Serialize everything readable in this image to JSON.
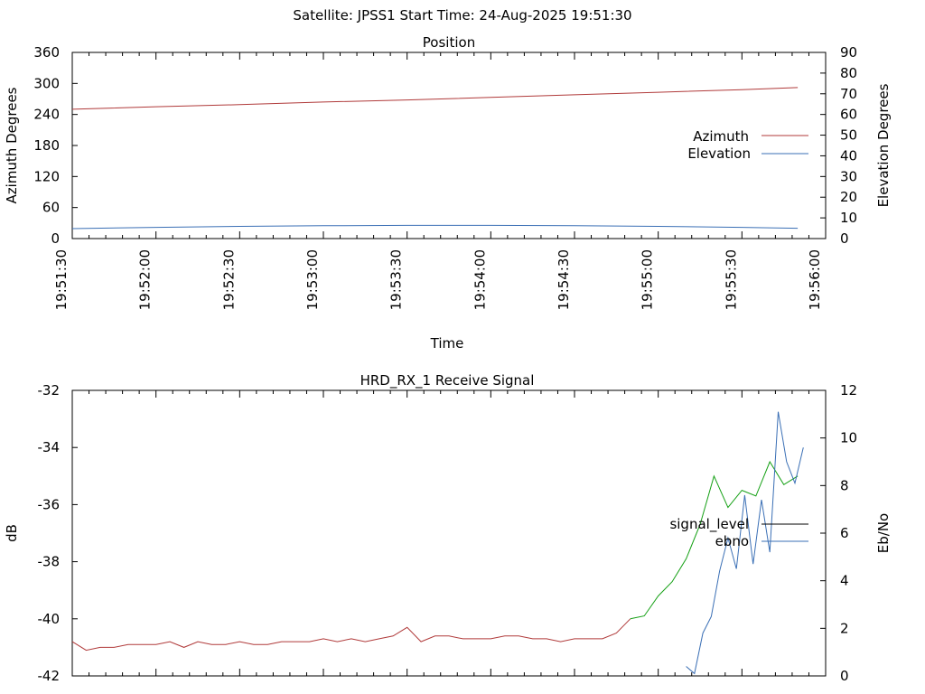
{
  "header": {
    "title": "Satellite: JPSS1    Start Time: 24-Aug-2025 19:51:30"
  },
  "colors": {
    "azimuth": "#b03a3a",
    "elevation": "#3a6fb5",
    "signal_level": "#000000",
    "signal_red": "#b03a3a",
    "signal_green": "#14a014",
    "ebno": "#3a6fb5"
  },
  "chart_data": [
    {
      "type": "line",
      "title": "Position",
      "xlabel": "Time",
      "ylabel": "Azimuth Degrees",
      "y2label": "Elevation Degrees",
      "xticks": [
        "19:51:30",
        "19:52:00",
        "19:52:30",
        "19:53:00",
        "19:53:30",
        "19:54:00",
        "19:54:30",
        "19:55:00",
        "19:55:30",
        "19:56:00"
      ],
      "xlim_seconds": [
        0,
        270
      ],
      "ylim": [
        0,
        360
      ],
      "yticks": [
        "0",
        "60",
        "120",
        "180",
        "240",
        "300",
        "360"
      ],
      "y2lim": [
        0,
        90
      ],
      "y2ticks": [
        "0",
        "10",
        "20",
        "30",
        "40",
        "50",
        "60",
        "70",
        "80",
        "90"
      ],
      "legend_position": "right",
      "series": [
        {
          "name": "Azimuth",
          "axis": "y",
          "x_seconds": [
            0,
            30,
            60,
            90,
            120,
            150,
            180,
            210,
            240,
            260
          ],
          "values": [
            250,
            255,
            259,
            264,
            268,
            273,
            278,
            283,
            288,
            292
          ]
        },
        {
          "name": "Elevation",
          "axis": "y2",
          "x_seconds": [
            0,
            30,
            60,
            90,
            120,
            150,
            180,
            210,
            240,
            260
          ],
          "values": [
            4.8,
            5.4,
            5.9,
            6.2,
            6.4,
            6.4,
            6.2,
            5.9,
            5.4,
            5.0
          ]
        }
      ]
    },
    {
      "type": "line",
      "title": "HRD_RX_1 Receive Signal",
      "ylabel": "dB",
      "y2label": "Eb/No",
      "ylim": [
        -42,
        -32
      ],
      "yticks": [
        "-32",
        "-34",
        "-36",
        "-38",
        "-40",
        "-42"
      ],
      "y2lim": [
        0,
        12
      ],
      "y2ticks": [
        "0",
        "2",
        "4",
        "6",
        "8",
        "10",
        "12"
      ],
      "legend_position": "right",
      "series": [
        {
          "name": "signal_level",
          "axis": "y",
          "x_seconds": [
            0,
            5,
            10,
            15,
            20,
            25,
            30,
            35,
            40,
            45,
            50,
            55,
            60,
            65,
            70,
            75,
            80,
            85,
            90,
            95,
            100,
            105,
            110,
            115,
            120,
            125,
            130,
            135,
            140,
            145,
            150,
            155,
            160,
            165,
            170,
            175,
            180,
            185,
            190,
            195,
            200,
            205,
            210,
            215,
            220,
            225,
            230,
            235,
            240,
            245,
            250,
            255,
            260
          ],
          "values": [
            -40.8,
            -41.1,
            -41.0,
            -41.0,
            -40.9,
            -40.9,
            -40.9,
            -40.8,
            -41.0,
            -40.8,
            -40.9,
            -40.9,
            -40.8,
            -40.9,
            -40.9,
            -40.8,
            -40.8,
            -40.8,
            -40.7,
            -40.8,
            -40.7,
            -40.8,
            -40.7,
            -40.6,
            -40.3,
            -40.8,
            -40.6,
            -40.6,
            -40.7,
            -40.7,
            -40.7,
            -40.6,
            -40.6,
            -40.7,
            -40.7,
            -40.8,
            -40.7,
            -40.7,
            -40.7,
            -40.5,
            -40.0,
            -39.9,
            -39.2,
            -38.7,
            -37.9,
            -36.7,
            -35.0,
            -36.1,
            -35.5,
            -35.7,
            -34.5,
            -35.3,
            -35.0
          ]
        },
        {
          "name": "ebno",
          "axis": "y2",
          "x_seconds": [
            220,
            223,
            226,
            229,
            232,
            235,
            238,
            241,
            244,
            247,
            250,
            253,
            256,
            259,
            262
          ],
          "values": [
            0.4,
            0.1,
            1.8,
            2.5,
            4.4,
            5.8,
            4.5,
            7.6,
            4.7,
            7.4,
            5.2,
            11.1,
            9.0,
            8.1,
            9.6
          ]
        }
      ]
    }
  ]
}
